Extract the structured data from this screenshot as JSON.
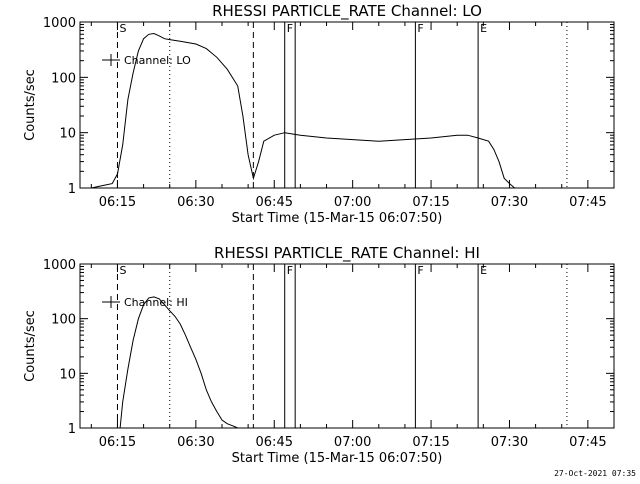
{
  "chart_data": [
    {
      "type": "line",
      "title": "RHESSI PARTICLE_RATE Channel: LO",
      "xlabel": "Start Time (15-Mar-15 06:07:50)",
      "ylabel": "Counts/sec",
      "y_scale": "log",
      "ylim": [
        1,
        1000
      ],
      "xlim": [
        "06:07:50",
        "07:50:00"
      ],
      "x_ticks": [
        "06:15",
        "06:30",
        "06:45",
        "07:00",
        "07:15",
        "07:30",
        "07:45"
      ],
      "y_ticks": [
        "1",
        "10",
        "100",
        "1000"
      ],
      "legend": {
        "label": "Channel: LO",
        "placement": "top-left"
      },
      "markers": [
        {
          "label": "S",
          "time": "06:15",
          "style": "dashed"
        },
        {
          "label": "",
          "time": "06:25",
          "style": "dotted"
        },
        {
          "label": "",
          "time": "06:41",
          "style": "dashed"
        },
        {
          "label": "F",
          "time": "06:47",
          "style": "solid"
        },
        {
          "label": "",
          "time": "06:49",
          "style": "solid"
        },
        {
          "label": "F",
          "time": "07:12",
          "style": "solid"
        },
        {
          "label": "E",
          "time": "07:24",
          "style": "solid"
        },
        {
          "label": "",
          "time": "07:41",
          "style": "dotted"
        }
      ],
      "series": [
        {
          "x": [
            "06:07:50",
            "06:10",
            "06:12",
            "06:14",
            "06:15",
            "06:16",
            "06:17",
            "06:18",
            "06:19",
            "06:20",
            "06:21",
            "06:22",
            "06:23",
            "06:24",
            "06:25",
            "06:27",
            "06:30",
            "06:32",
            "06:34",
            "06:36",
            "06:38",
            "06:39",
            "06:40",
            "06:41",
            "06:42",
            "06:43",
            "06:45",
            "06:47",
            "06:50",
            "06:55",
            "07:00",
            "07:05",
            "07:10",
            "07:15",
            "07:20",
            "07:22",
            "07:24",
            "07:26",
            "07:27",
            "07:28",
            "07:29",
            "07:30",
            "07:31",
            "07:32",
            "07:35",
            "07:38",
            "07:40"
          ],
          "y": [
            1,
            1,
            1.1,
            1.2,
            1.8,
            6,
            40,
            120,
            300,
            500,
            600,
            620,
            560,
            500,
            480,
            450,
            400,
            330,
            230,
            140,
            70,
            20,
            4,
            1.5,
            3,
            7,
            9,
            10,
            9,
            8,
            7.5,
            7,
            7.5,
            8,
            9,
            9,
            8,
            7,
            5,
            3,
            1.5,
            1.2,
            1,
            1,
            1,
            1,
            1
          ]
        }
      ]
    },
    {
      "type": "line",
      "title": "RHESSI PARTICLE_RATE Channel: HI",
      "xlabel": "Start Time (15-Mar-15 06:07:50)",
      "ylabel": "Counts/sec",
      "y_scale": "log",
      "ylim": [
        1,
        1000
      ],
      "xlim": [
        "06:07:50",
        "07:50:00"
      ],
      "x_ticks": [
        "06:15",
        "06:30",
        "06:45",
        "07:00",
        "07:15",
        "07:30",
        "07:45"
      ],
      "y_ticks": [
        "1",
        "10",
        "100",
        "1000"
      ],
      "legend": {
        "label": "Channel: HI",
        "placement": "top-left"
      },
      "markers": [
        {
          "label": "S",
          "time": "06:15",
          "style": "dashed"
        },
        {
          "label": "",
          "time": "06:25",
          "style": "dotted"
        },
        {
          "label": "",
          "time": "06:41",
          "style": "dashed"
        },
        {
          "label": "F",
          "time": "06:47",
          "style": "solid"
        },
        {
          "label": "",
          "time": "06:49",
          "style": "solid"
        },
        {
          "label": "F",
          "time": "07:12",
          "style": "solid"
        },
        {
          "label": "E",
          "time": "07:24",
          "style": "solid"
        },
        {
          "label": "",
          "time": "07:41",
          "style": "dotted"
        }
      ],
      "series": [
        {
          "x": [
            "06:15:30",
            "06:16",
            "06:17",
            "06:18",
            "06:19",
            "06:20",
            "06:21",
            "06:22",
            "06:23",
            "06:24",
            "06:25",
            "06:26",
            "06:27",
            "06:28",
            "06:29",
            "06:30",
            "06:31",
            "06:32",
            "06:33",
            "06:34",
            "06:35",
            "06:36",
            "06:37",
            "06:38"
          ],
          "y": [
            1,
            3,
            12,
            40,
            100,
            180,
            240,
            250,
            230,
            180,
            140,
            110,
            80,
            50,
            30,
            18,
            10,
            5,
            3,
            2,
            1.4,
            1.2,
            1.1,
            1
          ]
        }
      ]
    }
  ],
  "timestamp": "27-Oct-2021 07:35"
}
